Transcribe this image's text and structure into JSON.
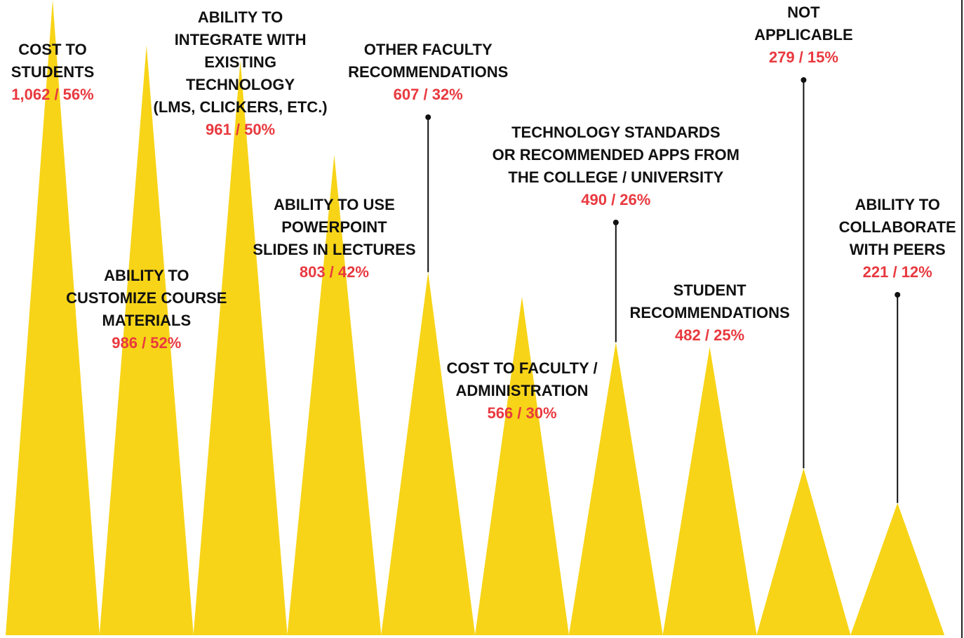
{
  "chart_data": {
    "type": "triangle",
    "categories": [
      [
        "COST TO",
        "STUDENTS"
      ],
      [
        "ABILITY TO",
        "CUSTOMIZE COURSE",
        "MATERIALS"
      ],
      [
        "ABILITY TO",
        "INTEGRATE WITH",
        "EXISTING",
        "TECHNOLOGY",
        "(LMS, CLICKERS, ETC.)"
      ],
      [
        "ABILITY TO USE",
        "POWERPOINT",
        "SLIDES IN LECTURES"
      ],
      [
        "OTHER FACULTY",
        "RECOMMENDATIONS"
      ],
      [
        "COST TO FACULTY /",
        "ADMINISTRATION"
      ],
      [
        "TECHNOLOGY STANDARDS",
        "OR RECOMMENDED APPS FROM",
        "THE COLLEGE / UNIVERSITY"
      ],
      [
        "STUDENT",
        "RECOMMENDATIONS"
      ],
      [
        "NOT",
        "APPLICABLE"
      ],
      [
        "ABILITY TO",
        "COLLABORATE",
        "WITH PEERS"
      ]
    ],
    "values": [
      1062,
      986,
      961,
      803,
      607,
      566,
      490,
      482,
      279,
      221
    ],
    "value_labels": [
      "1,062 / 56%",
      "986 / 52%",
      "961 / 50%",
      "803 / 42%",
      "607 / 32%",
      "566 / 30%",
      "490 / 26%",
      "482 / 25%",
      "279 / 15%",
      "221 / 12%"
    ],
    "color": "#f7d417",
    "label_color": "#e8393f"
  }
}
